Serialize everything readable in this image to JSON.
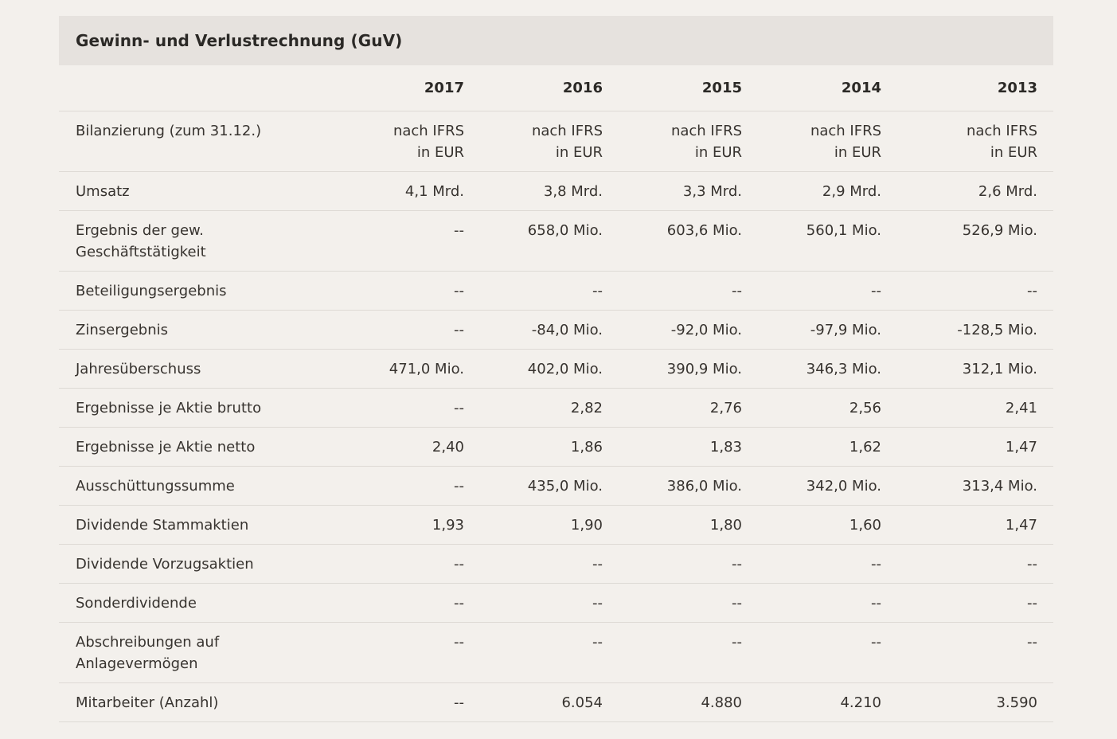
{
  "title": "Gewinn- und Verlustrechnung (GuV)",
  "years": [
    "2017",
    "2016",
    "2015",
    "2014",
    "2013"
  ],
  "rows": [
    {
      "label": [
        "Bilanzierung (zum 31.12.)"
      ],
      "values": [
        [
          "nach IFRS",
          "in EUR"
        ],
        [
          "nach IFRS",
          "in EUR"
        ],
        [
          "nach IFRS",
          "in EUR"
        ],
        [
          "nach IFRS",
          "in EUR"
        ],
        [
          "nach IFRS",
          "in EUR"
        ]
      ]
    },
    {
      "label": [
        "Umsatz"
      ],
      "values": [
        [
          "4,1 Mrd."
        ],
        [
          "3,8 Mrd."
        ],
        [
          "3,3 Mrd."
        ],
        [
          "2,9 Mrd."
        ],
        [
          "2,6 Mrd."
        ]
      ]
    },
    {
      "label": [
        "Ergebnis der gew.",
        "Geschäftstätigkeit"
      ],
      "values": [
        [
          "--"
        ],
        [
          "658,0 Mio."
        ],
        [
          "603,6 Mio."
        ],
        [
          "560,1 Mio."
        ],
        [
          "526,9 Mio."
        ]
      ]
    },
    {
      "label": [
        "Beteiligungsergebnis"
      ],
      "values": [
        [
          "--"
        ],
        [
          "--"
        ],
        [
          "--"
        ],
        [
          "--"
        ],
        [
          "--"
        ]
      ]
    },
    {
      "label": [
        "Zinsergebnis"
      ],
      "values": [
        [
          "--"
        ],
        [
          "-84,0 Mio."
        ],
        [
          "-92,0 Mio."
        ],
        [
          "-97,9 Mio."
        ],
        [
          "-128,5 Mio."
        ]
      ]
    },
    {
      "label": [
        "Jahresüberschuss"
      ],
      "values": [
        [
          "471,0 Mio."
        ],
        [
          "402,0 Mio."
        ],
        [
          "390,9 Mio."
        ],
        [
          "346,3 Mio."
        ],
        [
          "312,1 Mio."
        ]
      ]
    },
    {
      "label": [
        "Ergebnisse je Aktie brutto"
      ],
      "values": [
        [
          "--"
        ],
        [
          "2,82"
        ],
        [
          "2,76"
        ],
        [
          "2,56"
        ],
        [
          "2,41"
        ]
      ]
    },
    {
      "label": [
        "Ergebnisse je Aktie netto"
      ],
      "values": [
        [
          "2,40"
        ],
        [
          "1,86"
        ],
        [
          "1,83"
        ],
        [
          "1,62"
        ],
        [
          "1,47"
        ]
      ]
    },
    {
      "label": [
        "Ausschüttungssumme"
      ],
      "values": [
        [
          "--"
        ],
        [
          "435,0 Mio."
        ],
        [
          "386,0 Mio."
        ],
        [
          "342,0 Mio."
        ],
        [
          "313,4 Mio."
        ]
      ]
    },
    {
      "label": [
        "Dividende Stammaktien"
      ],
      "values": [
        [
          "1,93"
        ],
        [
          "1,90"
        ],
        [
          "1,80"
        ],
        [
          "1,60"
        ],
        [
          "1,47"
        ]
      ]
    },
    {
      "label": [
        "Dividende Vorzugsaktien"
      ],
      "values": [
        [
          "--"
        ],
        [
          "--"
        ],
        [
          "--"
        ],
        [
          "--"
        ],
        [
          "--"
        ]
      ]
    },
    {
      "label": [
        "Sonderdividende"
      ],
      "values": [
        [
          "--"
        ],
        [
          "--"
        ],
        [
          "--"
        ],
        [
          "--"
        ],
        [
          "--"
        ]
      ]
    },
    {
      "label": [
        "Abschreibungen auf",
        "Anlagevermögen"
      ],
      "values": [
        [
          "--"
        ],
        [
          "--"
        ],
        [
          "--"
        ],
        [
          "--"
        ],
        [
          "--"
        ]
      ]
    },
    {
      "label": [
        "Mitarbeiter (Anzahl)"
      ],
      "values": [
        [
          "--"
        ],
        [
          "6.054"
        ],
        [
          "4.880"
        ],
        [
          "4.210"
        ],
        [
          "3.590"
        ]
      ]
    }
  ]
}
